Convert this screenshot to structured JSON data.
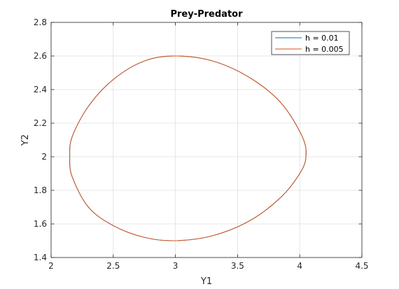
{
  "chart_data": {
    "type": "line",
    "title": "Prey-Predator",
    "xlabel": "Y1",
    "ylabel": "Y2",
    "xlim": [
      2,
      4.5
    ],
    "ylim": [
      1.4,
      2.8
    ],
    "xticks": [
      2,
      2.5,
      3,
      3.5,
      4,
      4.5
    ],
    "yticks": [
      1.4,
      1.6,
      1.8,
      2,
      2.2,
      2.4,
      2.6,
      2.8
    ],
    "xtick_labels": [
      "2",
      "2.5",
      "3",
      "3.5",
      "4",
      "4.5"
    ],
    "ytick_labels": [
      "1.4",
      "1.6",
      "1.8",
      "2",
      "2.2",
      "2.4",
      "2.6",
      "2.8"
    ],
    "grid": true,
    "legend_position": "top-right",
    "series": [
      {
        "name": "h = 0.01",
        "color": "#0072BD",
        "x": [
          3.0,
          2.75,
          2.5,
          2.3,
          2.17,
          2.15,
          2.17,
          2.3,
          2.5,
          2.75,
          3.0,
          3.3,
          3.6,
          3.85,
          4.0,
          4.05,
          4.02,
          3.85,
          3.6,
          3.3,
          3.0
        ],
        "y": [
          2.6,
          2.57,
          2.46,
          2.3,
          2.12,
          2.0,
          1.88,
          1.7,
          1.59,
          1.52,
          1.5,
          1.53,
          1.62,
          1.76,
          1.9,
          2.0,
          2.12,
          2.32,
          2.47,
          2.57,
          2.6
        ]
      },
      {
        "name": "h = 0.005",
        "color": "#D95319",
        "x": [
          3.0,
          2.75,
          2.5,
          2.3,
          2.17,
          2.15,
          2.17,
          2.3,
          2.5,
          2.75,
          3.0,
          3.3,
          3.6,
          3.85,
          4.0,
          4.05,
          4.02,
          3.85,
          3.6,
          3.3,
          3.0
        ],
        "y": [
          2.6,
          2.57,
          2.46,
          2.3,
          2.12,
          2.0,
          1.88,
          1.7,
          1.59,
          1.52,
          1.5,
          1.53,
          1.62,
          1.76,
          1.9,
          2.0,
          2.12,
          2.32,
          2.47,
          2.57,
          2.6
        ]
      }
    ]
  }
}
